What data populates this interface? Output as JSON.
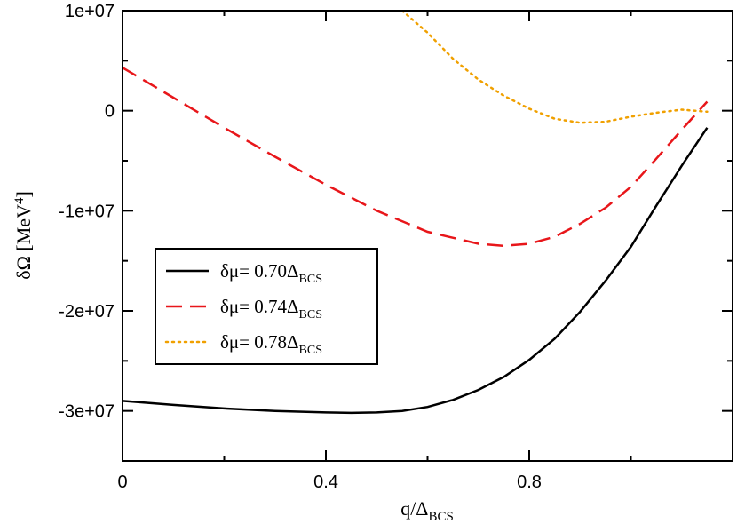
{
  "chart_data": {
    "type": "line",
    "xlabel": "q/Δ",
    "xlabel_sub": "BCS",
    "ylabel": "δΩ [MeV",
    "ylabel_sup": "4",
    "ylabel_close": "]",
    "xlim": [
      0,
      1.2
    ],
    "ylim": [
      -35000000,
      10000000
    ],
    "x_ticks": [
      {
        "value": 0,
        "label": "0"
      },
      {
        "value": 0.4,
        "label": "0.4"
      },
      {
        "value": 0.8,
        "label": "0.8"
      }
    ],
    "y_ticks": [
      {
        "value": 10000000,
        "label": "1e+07"
      },
      {
        "value": 0,
        "label": "0"
      },
      {
        "value": -10000000,
        "label": "-1e+07"
      },
      {
        "value": -20000000,
        "label": "-2e+07"
      },
      {
        "value": -30000000,
        "label": "-3e+07"
      }
    ],
    "legend_position": "center-left",
    "series": [
      {
        "name": "δμ= 0.70Δ",
        "name_sub": "BCS",
        "color": "#000000",
        "dash": "solid",
        "points": [
          [
            0,
            -29000000
          ],
          [
            0.1,
            -29400000
          ],
          [
            0.2,
            -29750000
          ],
          [
            0.3,
            -30000000
          ],
          [
            0.4,
            -30150000
          ],
          [
            0.45,
            -30200000
          ],
          [
            0.5,
            -30150000
          ],
          [
            0.55,
            -30000000
          ],
          [
            0.6,
            -29600000
          ],
          [
            0.65,
            -28900000
          ],
          [
            0.7,
            -27900000
          ],
          [
            0.75,
            -26600000
          ],
          [
            0.8,
            -24900000
          ],
          [
            0.85,
            -22800000
          ],
          [
            0.9,
            -20100000
          ],
          [
            0.95,
            -17000000
          ],
          [
            1.0,
            -13600000
          ],
          [
            1.05,
            -9500000
          ],
          [
            1.1,
            -5500000
          ],
          [
            1.15,
            -1700000
          ]
        ]
      },
      {
        "name": "δμ= 0.74Δ",
        "name_sub": "BCS",
        "color": "#e8161a",
        "dash": "long-dash",
        "points": [
          [
            0,
            4300000
          ],
          [
            0.1,
            1300000
          ],
          [
            0.2,
            -1700000
          ],
          [
            0.3,
            -4600000
          ],
          [
            0.4,
            -7400000
          ],
          [
            0.5,
            -10000000
          ],
          [
            0.6,
            -12100000
          ],
          [
            0.7,
            -13300000
          ],
          [
            0.75,
            -13500000
          ],
          [
            0.8,
            -13300000
          ],
          [
            0.85,
            -12600000
          ],
          [
            0.9,
            -11300000
          ],
          [
            0.95,
            -9700000
          ],
          [
            1.0,
            -7600000
          ],
          [
            1.05,
            -4800000
          ],
          [
            1.1,
            -1900000
          ],
          [
            1.15,
            900000
          ]
        ]
      },
      {
        "name": "δμ= 0.78Δ",
        "name_sub": "BCS",
        "color": "#f0a000",
        "dash": "dotted",
        "points": [
          [
            0.55,
            10000000
          ],
          [
            0.6,
            7800000
          ],
          [
            0.65,
            5200000
          ],
          [
            0.7,
            3100000
          ],
          [
            0.75,
            1500000
          ],
          [
            0.8,
            200000
          ],
          [
            0.85,
            -800000
          ],
          [
            0.9,
            -1200000
          ],
          [
            0.95,
            -1100000
          ],
          [
            1.0,
            -600000
          ],
          [
            1.05,
            -200000
          ],
          [
            1.1,
            100000
          ],
          [
            1.15,
            -100000
          ]
        ]
      }
    ]
  }
}
